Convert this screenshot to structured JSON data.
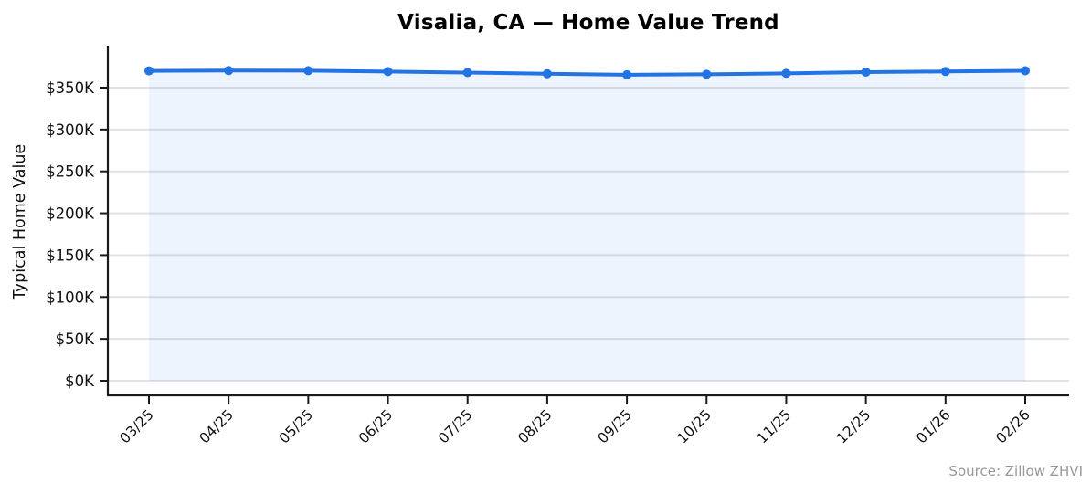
{
  "chart_data": {
    "type": "line",
    "title": "Visalia, CA — Home Value Trend",
    "ylabel": "Typical Home Value",
    "xlabel": "",
    "source": "Source: Zillow ZHVI",
    "categories": [
      "03/25",
      "04/25",
      "05/25",
      "06/25",
      "07/25",
      "08/25",
      "09/25",
      "10/25",
      "11/25",
      "12/25",
      "01/26",
      "02/26"
    ],
    "series": [
      {
        "name": "Typical Home Value ($K)",
        "values": [
          370.1,
          370.4,
          370.3,
          369.2,
          368.0,
          366.6,
          365.4,
          366.0,
          367.1,
          368.6,
          369.3,
          370.2
        ]
      }
    ],
    "unit": "thousand USD",
    "ylim": [
      0,
      400
    ],
    "yticks": [
      0,
      50,
      100,
      150,
      200,
      250,
      300,
      350
    ],
    "ytick_labels": [
      "$0K",
      "$50K",
      "$100K",
      "$150K",
      "$200K",
      "$250K",
      "$300K",
      "$350K"
    ],
    "grid": true,
    "legend": "none",
    "line_color": "#2273e3",
    "fill_color": "#2273e3",
    "fill_opacity": 0.08,
    "grid_color": "#e0e2e8",
    "axis_color": "#1a1a1a",
    "marker": "circle"
  }
}
